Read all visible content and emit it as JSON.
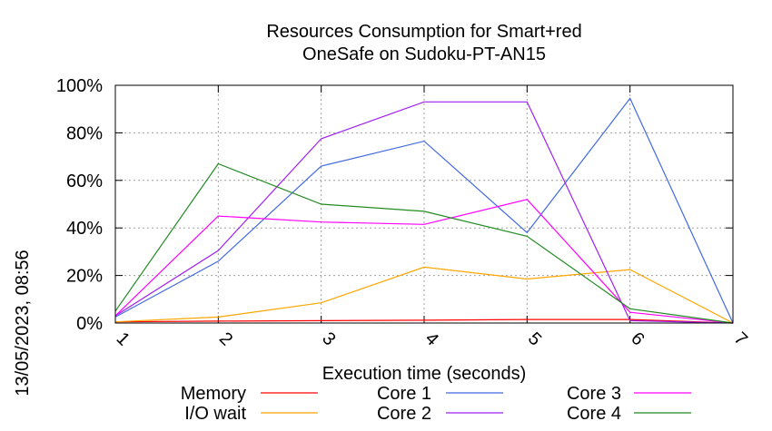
{
  "chart_data": {
    "type": "line",
    "title": [
      "Resources Consumption for Smart+red",
      "OneSafe on Sudoku-PT-AN15"
    ],
    "xlabel": "Execution time (seconds)",
    "ylabel": "",
    "side_label": "13/05/2023, 08:56",
    "xlim": [
      1,
      7
    ],
    "ylim": [
      0,
      100
    ],
    "x_ticks": [
      "1",
      "2",
      "3",
      "4",
      "5",
      "6",
      "7"
    ],
    "y_ticks": [
      "0%",
      "20%",
      "40%",
      "60%",
      "80%",
      "100%"
    ],
    "grid": true,
    "legend_position": "bottom",
    "x": [
      1,
      2,
      3,
      4,
      5,
      6,
      7
    ],
    "series": [
      {
        "name": "Memory",
        "color": "#ff0000",
        "values": [
          0.5,
          0.8,
          1.0,
          1.2,
          1.5,
          1.5,
          0
        ]
      },
      {
        "name": "I/O wait",
        "color": "#ffa500",
        "values": [
          0.5,
          2.5,
          8.5,
          23.5,
          18.5,
          22.5,
          0
        ]
      },
      {
        "name": "Core 1",
        "color": "#4169e1",
        "values": [
          2.5,
          26,
          66,
          76.5,
          38,
          94.5,
          0
        ]
      },
      {
        "name": "Core 2",
        "color": "#a020f0",
        "values": [
          3,
          30.5,
          77.5,
          93,
          93,
          1,
          0
        ]
      },
      {
        "name": "Core 3",
        "color": "#ff00ff",
        "values": [
          3,
          45,
          42.5,
          41.5,
          52,
          4.5,
          0
        ]
      },
      {
        "name": "Core 4",
        "color": "#228b22",
        "values": [
          5,
          67,
          50,
          47,
          36.5,
          6,
          0
        ]
      }
    ]
  }
}
